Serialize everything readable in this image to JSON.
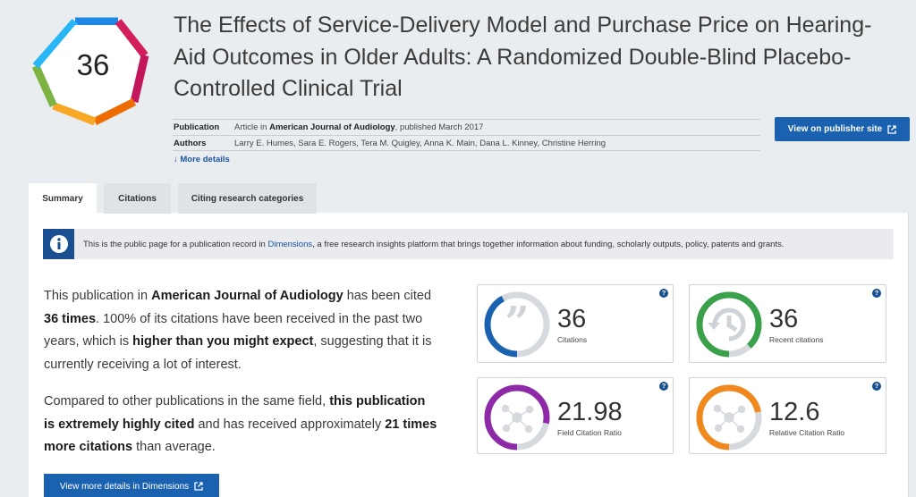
{
  "badge": {
    "score": "36"
  },
  "title": "The Effects of Service-Delivery Model and Purchase Price on Hearing-Aid Outcomes in Older Adults: A Randomized Double-Blind Placebo-Controlled Clinical Trial",
  "meta": {
    "publication_label": "Publication",
    "publication_prefix": "Article in ",
    "journal": "American Journal of Audiology",
    "publication_suffix": ", published March 2017",
    "authors_label": "Authors",
    "authors": "Larry E. Humes, Sara E. Rogers, Tera M. Quigley, Anna K. Main, Dana L. Kinney, Christine Herring",
    "more_details": "More details"
  },
  "publisher_button": "View on publisher site",
  "tabs": [
    {
      "label": "Summary",
      "active": true
    },
    {
      "label": "Citations",
      "active": false
    },
    {
      "label": "Citing research categories",
      "active": false
    }
  ],
  "info": {
    "before": "This is the public page for a publication record in ",
    "link": "Dimensions",
    "after": ", a free research insights platform that brings together information about funding, scholarly outputs, policy, patents and grants."
  },
  "summary": {
    "p1_a": "This publication in ",
    "p1_b": "American Journal of Audiology",
    "p1_c": " has been cited ",
    "p1_d": "36 times",
    "p1_e": ". 100% of its citations have been received in the past two years, which is ",
    "p1_f": "higher than you might expect",
    "p1_g": ", suggesting that it is currently receiving a lot of interest.",
    "p2_a": "Compared to other publications in the same field, ",
    "p2_b": "this publication is extremely highly cited",
    "p2_c": " and has received approximately ",
    "p2_d": "21 times more citations",
    "p2_e": " than average."
  },
  "dimensions_button": "View more details in Dimensions",
  "metrics": [
    {
      "value": "36",
      "label": "Citations",
      "color": "#1a62b0",
      "fill": 0.42,
      "help": "?"
    },
    {
      "value": "36",
      "label": "Recent citations",
      "color": "#3aa14a",
      "fill": 0.88,
      "help": "?"
    },
    {
      "value": "21.98",
      "label": "Field Citation Ratio",
      "color": "#8e2aa8",
      "fill": 0.78,
      "help": "?"
    },
    {
      "value": "12.6",
      "label": "Relative Citation Ratio",
      "color": "#f0881e",
      "fill": 0.72,
      "help": "?"
    }
  ]
}
